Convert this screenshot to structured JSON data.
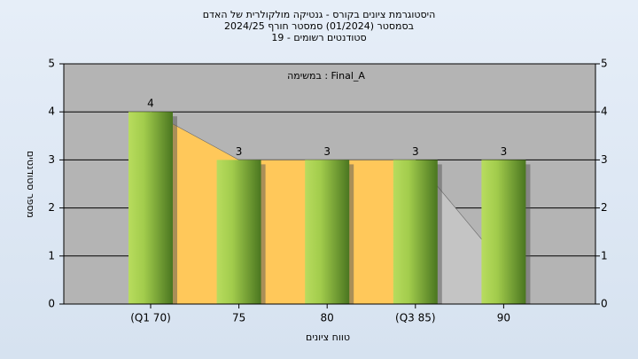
{
  "chart_data": {
    "type": "bar",
    "title": "היסטוגרמת ציונים בקורס - גנטיקה מולקולרית של האדם",
    "subtitle": "בסמסטר  (01/2024)  סמסטר חורף 2024/25",
    "subtitle2": "סטודנטים רשומים - 19",
    "annotation": "Final_A : במשימה",
    "x_label": "טווח ציונים",
    "y_label": "מספר סטודנטים",
    "categories": [
      "(Q1 70)",
      "75",
      "80",
      "(Q3 85)",
      "90"
    ],
    "values": [
      4,
      3,
      3,
      3,
      3
    ],
    "color": "#8fbf3a",
    "areas": [
      {
        "color": "#ffc85a",
        "values": [
          4,
          3,
          3,
          3,
          null
        ]
      },
      {
        "color": "#c4c4c4",
        "values": [
          null,
          null,
          null,
          3,
          0.8
        ]
      }
    ],
    "ylim": [
      0,
      5
    ],
    "yticks": [
      0,
      1,
      2,
      3,
      4,
      5
    ],
    "grid": true
  }
}
